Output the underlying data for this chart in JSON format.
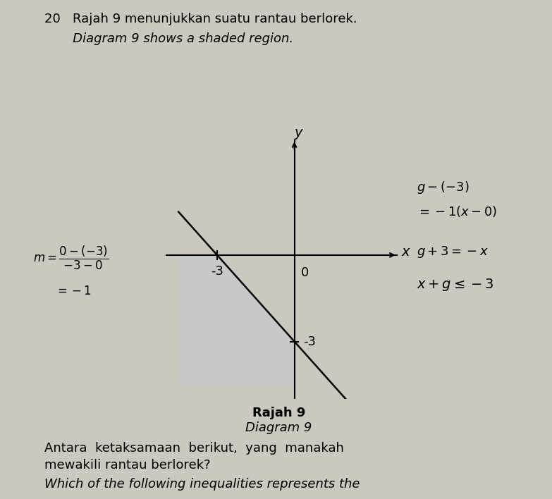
{
  "title_line1": "20   Rajah 9 menunjukkan suatu rantau berlorek.",
  "title_line2": "       Diagram 9 shows a shaded region.",
  "diagram_label1": "Rajah 9",
  "diagram_label2": "Diagram 9",
  "x_intercept": -3,
  "y_intercept": -3,
  "axis_label_x": "x",
  "axis_label_y": "y",
  "tick_x": -3,
  "tick_y": -3,
  "shade_color": "#c8c8c8",
  "line_color": "#000000",
  "axis_color": "#000000",
  "bg_color": "#cac8bf",
  "text_color": "#000000",
  "xlim": [
    -5.0,
    4.0
  ],
  "ylim": [
    -5.0,
    4.0
  ],
  "graph_left_x": -4.5,
  "graph_bottom_y": -4.5
}
